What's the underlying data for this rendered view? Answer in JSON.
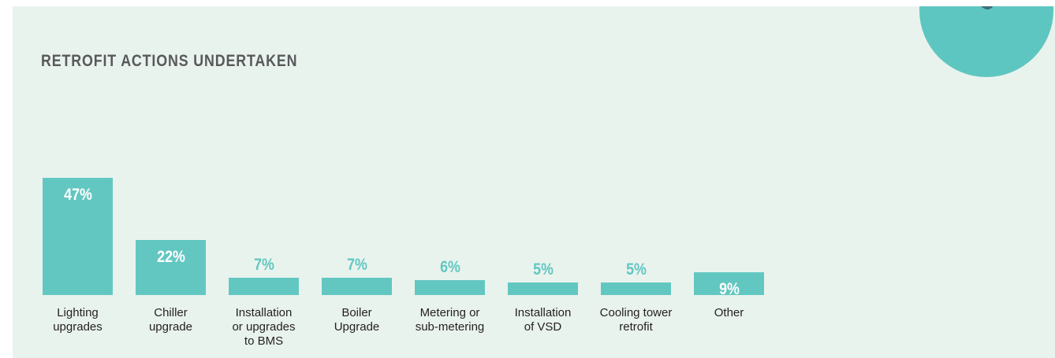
{
  "chart_data": {
    "type": "bar",
    "title": "RETROFIT ACTIONS UNDERTAKEN",
    "categories": [
      "Lighting\nupgrades",
      "Chiller\nupgrade",
      "Installation\nor upgrades\nto BMS",
      "Boiler\nUpgrade",
      "Metering or\nsub-metering",
      "Installation\nof VSD",
      "Cooling tower\nretrofit",
      "Other"
    ],
    "values": [
      47,
      22,
      7,
      7,
      6,
      5,
      5,
      9
    ],
    "value_labels": [
      "47%",
      "22%",
      "7%",
      "7%",
      "6%",
      "5%",
      "5%",
      "9%"
    ],
    "color": "#63c7c1"
  }
}
